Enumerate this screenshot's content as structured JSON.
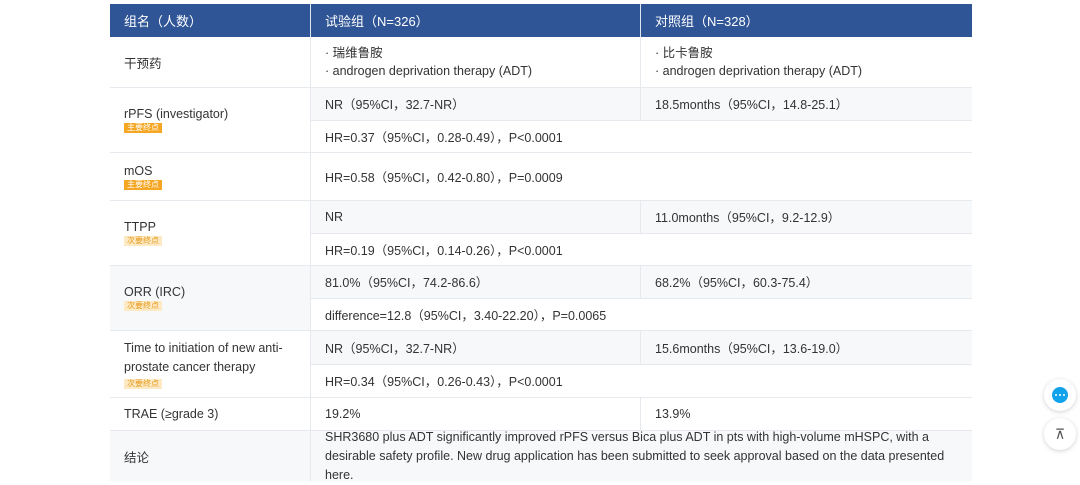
{
  "header": {
    "col1": "组名（人数）",
    "col2": "试验组（N=326）",
    "col3": "对照组（N=328）"
  },
  "rows": {
    "intervention": {
      "label": "干预药",
      "trial": [
        "· 瑞维鲁胺",
        "· androgen deprivation therapy (ADT)"
      ],
      "control": [
        "· 比卡鲁胺",
        "· androgen deprivation therapy (ADT)"
      ]
    },
    "rpfs": {
      "label": "rPFS (investigator)",
      "badge": "主要终点",
      "trial": "NR（95%CI，32.7-NR）",
      "control": "18.5months（95%CI，14.8-25.1）",
      "hr": "HR=0.37（95%CI，0.28-0.49），P<0.0001"
    },
    "mos": {
      "label": "mOS",
      "badge": "主要终点",
      "hr": "HR=0.58（95%CI，0.42-0.80），P=0.0009"
    },
    "ttpp": {
      "label": "TTPP",
      "badge": "次要终点",
      "trial": "NR",
      "control": "11.0months（95%CI，9.2-12.9）",
      "hr": "HR=0.19（95%CI，0.14-0.26），P<0.0001"
    },
    "orr": {
      "label": "ORR (IRC)",
      "badge": "次要终点",
      "trial": "81.0%（95%CI，74.2-86.6）",
      "control": "68.2%（95%CI，60.3-75.4）",
      "diff": "difference=12.8（95%CI，3.40-22.20），P=0.0065"
    },
    "tti": {
      "label": "Time to initiation of new anti-prostate cancer therapy",
      "badge": "次要终点",
      "trial": "NR（95%CI，32.7-NR）",
      "control": "15.6months（95%CI，13.6-19.0）",
      "hr": "HR=0.34（95%CI，0.26-0.43），P<0.0001"
    },
    "trae": {
      "label": "TRAE (≥grade 3)",
      "trial": "19.2%",
      "control": "13.9%"
    },
    "conclusion": {
      "label": "结论",
      "text": "SHR3680 plus ADT significantly improved rPFS versus Bica plus ADT in pts with high-volume mHSPC, with a desirable safety profile. New drug application has been submitted to seek approval based on the data presented here."
    }
  },
  "floating": {
    "chat_icon": "chat-icon",
    "top_icon": "back-to-top-icon",
    "top_glyph": "⊼"
  },
  "colors": {
    "header_bg": "#2f5596",
    "primary_badge": "#f5a623",
    "secondary_badge_bg": "#fde9c4",
    "chat": "#11a2ec"
  }
}
